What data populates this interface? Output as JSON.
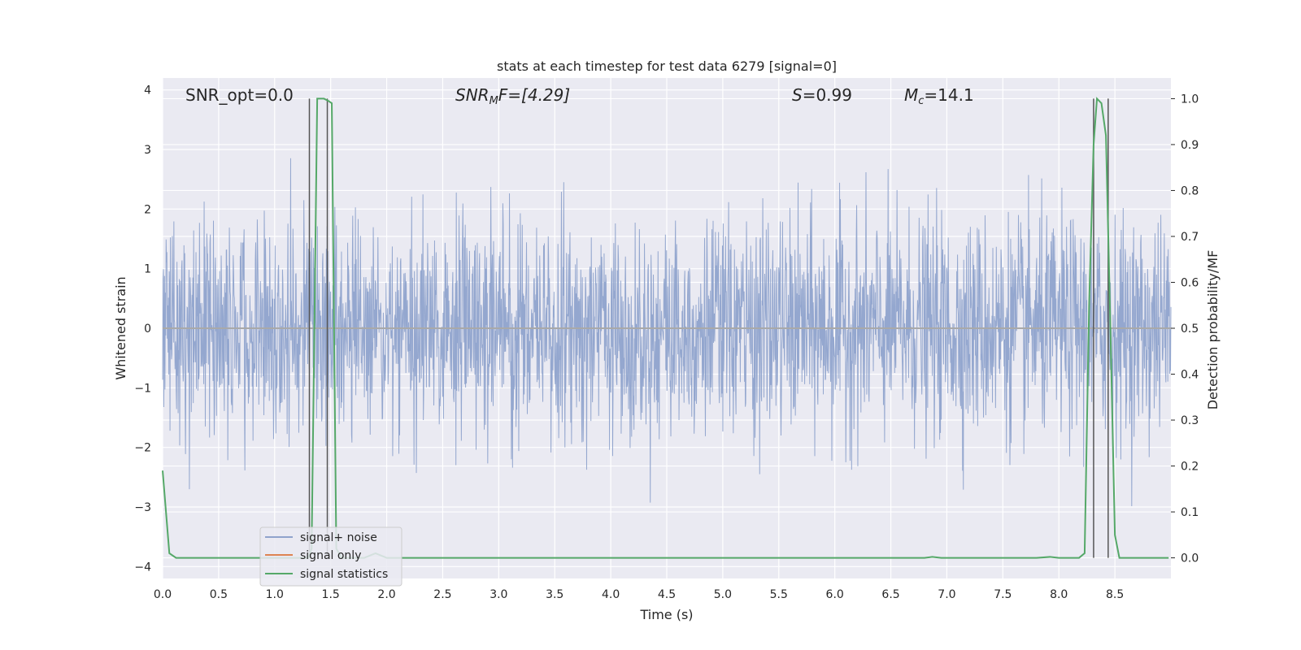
{
  "chart_data": {
    "type": "line",
    "title": "stats at each timestep for test data 6279 [signal=0]",
    "xlabel": "Time (s)",
    "ylabel": "Whitened strain",
    "y2label": "Detection probability/MF",
    "xlim": [
      0.0,
      9.0
    ],
    "ylim": [
      -4.2,
      4.2
    ],
    "y2lim": [
      -0.045,
      1.045
    ],
    "x_ticks": [
      "0.0",
      "0.5",
      "1.0",
      "1.5",
      "2.0",
      "2.5",
      "3.0",
      "3.5",
      "4.0",
      "4.5",
      "5.0",
      "5.5",
      "6.0",
      "6.5",
      "7.0",
      "7.5",
      "8.0",
      "8.5"
    ],
    "y_ticks": [
      "−4",
      "−3",
      "−2",
      "−1",
      "0",
      "1",
      "2",
      "3",
      "4"
    ],
    "y2_ticks": [
      "0.0",
      "0.1",
      "0.2",
      "0.3",
      "0.4",
      "0.5",
      "0.6",
      "0.7",
      "0.8",
      "0.9",
      "1.0"
    ],
    "grid": true,
    "legend_position": "lower-left",
    "annotations": {
      "snr_opt": "SNR_opt=0.0",
      "snr_mf_main": "SNR",
      "snr_mf_sub": "M",
      "snr_mf_tail": "F=[4.29]",
      "s_main": "S",
      "s_tail": "=0.99",
      "mc_main": "M",
      "mc_sub": "c",
      "mc_tail": "=14.1"
    },
    "series": [
      {
        "name": "signal+ noise",
        "color": "#8fa3cc",
        "kind": "noise",
        "std": 0.9,
        "duration": 9.0
      },
      {
        "name": "signal only",
        "color": "#dd8452",
        "kind": "flat",
        "value": 0.0
      },
      {
        "name": "signal statistics",
        "color": "#55a868",
        "axis": "right",
        "x": [
          0.0,
          0.06,
          0.12,
          0.25,
          1.25,
          1.3,
          1.33,
          1.38,
          1.44,
          1.48,
          1.51,
          1.55,
          1.6,
          1.8,
          1.9,
          2.0,
          6.8,
          6.87,
          6.95,
          7.8,
          7.92,
          8.0,
          8.18,
          8.23,
          8.27,
          8.31,
          8.34,
          8.38,
          8.42,
          8.46,
          8.5,
          8.54,
          8.6,
          8.7,
          8.98
        ],
        "y": [
          0.19,
          0.01,
          0.0,
          0.0,
          0.0,
          0.0,
          0.02,
          1.0,
          1.0,
          0.995,
          0.99,
          0.02,
          0.0,
          0.0,
          0.01,
          0.0,
          0.0,
          0.002,
          0.0,
          0.0,
          0.002,
          0.0,
          0.0,
          0.01,
          0.55,
          0.9,
          1.0,
          0.99,
          0.92,
          0.5,
          0.05,
          0.0,
          0.0,
          0.0,
          0.0
        ]
      }
    ],
    "vertical_lines_x": [
      1.31,
      1.47,
      8.31,
      8.44
    ]
  }
}
